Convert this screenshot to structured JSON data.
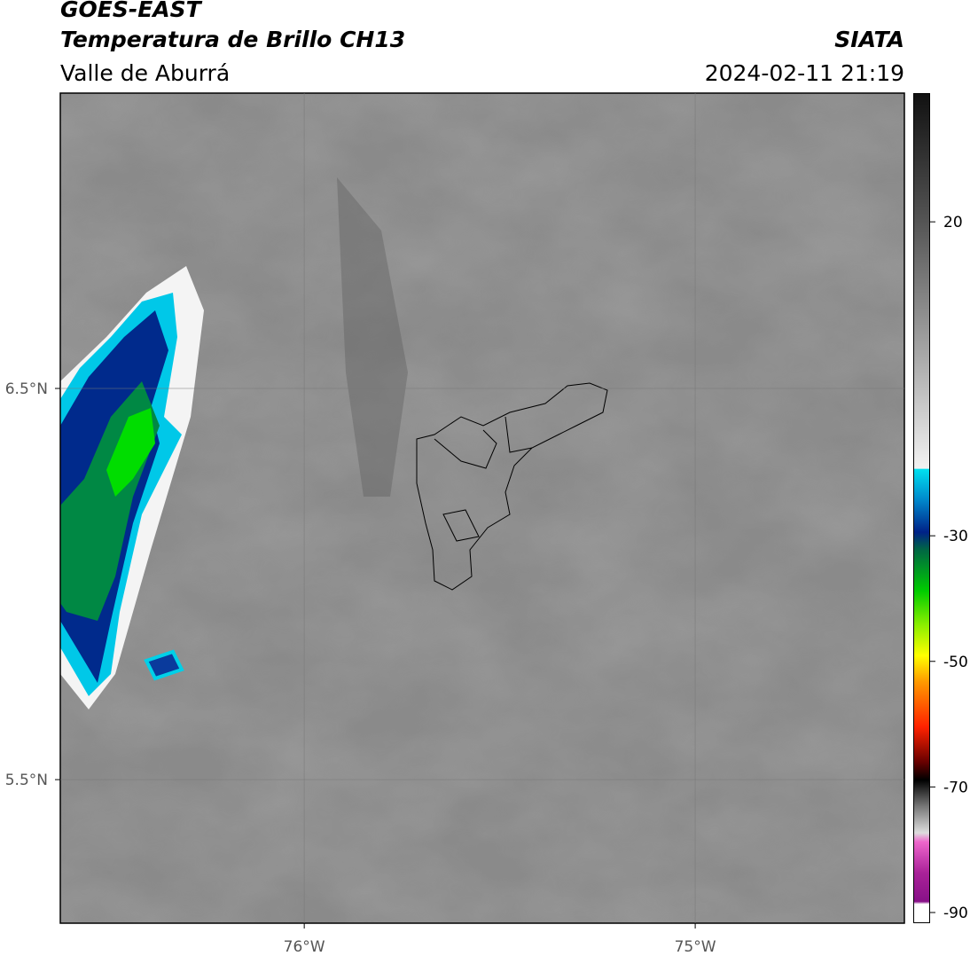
{
  "header": {
    "satellite": "GOES-EAST",
    "product": "Temperatura de Brillo CH13",
    "region": "Valle de Aburrá",
    "source": "SIATA",
    "datetime": "2024-02-11 21:19"
  },
  "map": {
    "lat_lim": [
      5.133,
      7.255
    ],
    "lon_lim": [
      -76.624,
      -74.465
    ],
    "lat_ticks": [
      {
        "value": 6.5,
        "label": "6.5°N"
      },
      {
        "value": 5.5,
        "label": "5.5°N"
      }
    ],
    "lon_ticks": [
      {
        "value": -76,
        "label": "76°W"
      },
      {
        "value": -75,
        "label": "75°W"
      }
    ]
  },
  "colorbar": {
    "lim": [
      -91.7,
      40.5
    ],
    "ticks": [
      20,
      -30,
      -50,
      -70,
      -90
    ]
  }
}
